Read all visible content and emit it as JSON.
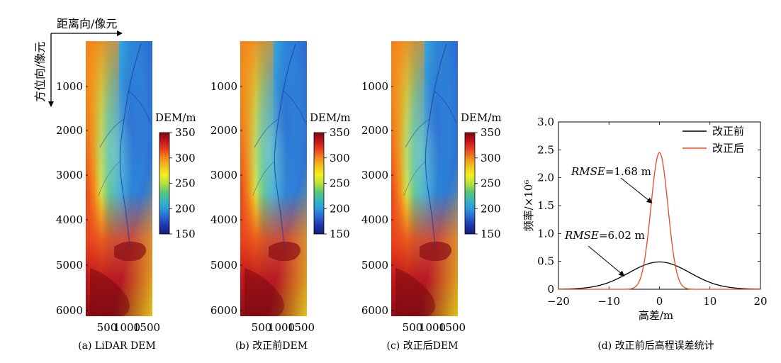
{
  "axis_annotations": {
    "range_label": "距离向/像元",
    "azimuth_label": "方位向/像元"
  },
  "dem_panels": [
    {
      "caption": "(a) LiDAR DEM",
      "variant": "a"
    },
    {
      "caption": "(b) 改正前DEM",
      "variant": "b"
    },
    {
      "caption": "(c) 改正后DEM",
      "variant": "c"
    }
  ],
  "dem_axes": {
    "y_ticks": [
      "1000",
      "2000",
      "3000",
      "4000",
      "5000",
      "6000"
    ],
    "x_ticks": [
      "500",
      "1000",
      "1500"
    ]
  },
  "colorbar": {
    "title": "DEM/m",
    "ticks": [
      "350",
      "300",
      "250",
      "200",
      "150"
    ],
    "colors": [
      "#7a0a12",
      "#c0141a",
      "#e8421e",
      "#f28a1e",
      "#f2c41a",
      "#f4ee20",
      "#b8e23a",
      "#5cc870",
      "#38b8b8",
      "#2a9ae0",
      "#2a64d2",
      "#1e34a8",
      "#13207a"
    ]
  },
  "chart_data": {
    "type": "line",
    "caption": "(d) 改正前后高程误差统计",
    "xlabel": "高差/m",
    "ylabel": "频率/×10⁶",
    "xlim": [
      -20,
      20
    ],
    "ylim": [
      0,
      3.0
    ],
    "x_ticks": [
      "−20",
      "−10",
      "0",
      "10",
      "20"
    ],
    "y_ticks": [
      "0",
      "0.5",
      "1.0",
      "1.5",
      "2.0",
      "2.5",
      "3.0"
    ],
    "grid": false,
    "legend_position": "top-right",
    "series": [
      {
        "name": "改正前",
        "color": "#000000",
        "mean": 0,
        "sigma": 6.02,
        "peak": 0.49
      },
      {
        "name": "改正后",
        "color": "#e8491d",
        "mean": 0,
        "sigma": 1.68,
        "peak": 2.45
      }
    ],
    "annotations": [
      {
        "label_italic": "RMSE",
        "label_rest": "=1.68 m",
        "target_x": -1.5,
        "target_y": 1.55
      },
      {
        "label_italic": "RMSE",
        "label_rest": "=6.02 m",
        "target_x": -7.0,
        "target_y": 0.24
      }
    ]
  }
}
